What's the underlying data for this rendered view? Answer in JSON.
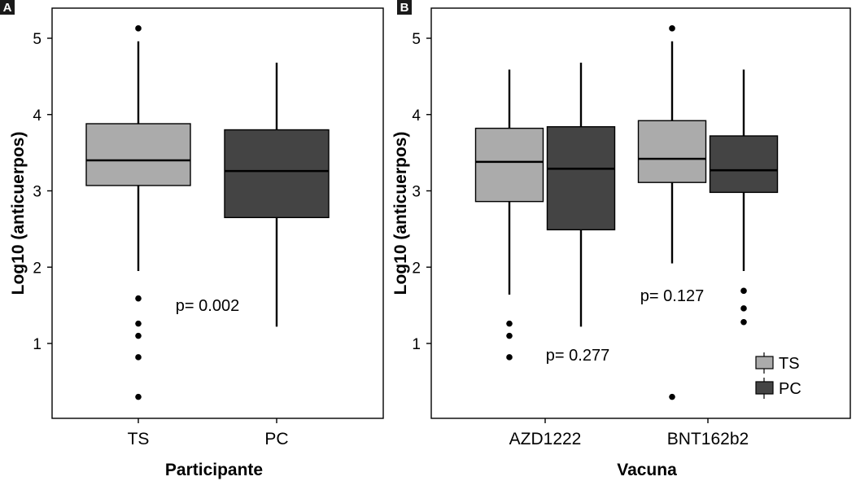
{
  "colors": {
    "ts": "#ababab",
    "pc": "#444444",
    "stroke": "#000000",
    "panel_label_bg": "#1a1a1a"
  },
  "chart_data": [
    {
      "type": "boxplot",
      "panel_label": "A",
      "xlabel": "Participante",
      "ylabel": "Log10 (anticuerpos)",
      "ylim": [
        0.1,
        5.4
      ],
      "yticks": [
        1,
        2,
        3,
        4,
        5
      ],
      "categories": [
        "TS",
        "PC"
      ],
      "boxes": [
        {
          "category": "TS",
          "group": "TS",
          "min": 1.95,
          "q1": 3.07,
          "median": 3.4,
          "q3": 3.88,
          "max": 4.96,
          "outliers": [
            5.13,
            1.59,
            1.26,
            1.1,
            0.82,
            0.3
          ]
        },
        {
          "category": "PC",
          "group": "PC",
          "min": 1.22,
          "q1": 2.65,
          "median": 3.26,
          "q3": 3.8,
          "max": 4.68,
          "outliers": []
        }
      ],
      "annotations": [
        {
          "text": "p= 0.002",
          "x": 1.5,
          "y": 1.5
        }
      ]
    },
    {
      "type": "boxplot",
      "panel_label": "B",
      "xlabel": "Vacuna",
      "ylabel": "Log10 (anticuerpos)",
      "ylim": [
        0.1,
        5.4
      ],
      "yticks": [
        1,
        2,
        3,
        4,
        5
      ],
      "categories": [
        "AZD1222",
        "BNT162b2"
      ],
      "legend": [
        {
          "label": "TS",
          "group": "TS"
        },
        {
          "label": "PC",
          "group": "PC"
        }
      ],
      "legend_position": "bottom-right",
      "boxes": [
        {
          "category": "AZD1222",
          "group": "TS",
          "min": 1.64,
          "q1": 2.86,
          "median": 3.38,
          "q3": 3.82,
          "max": 4.59,
          "outliers": [
            1.26,
            1.1,
            0.82
          ]
        },
        {
          "category": "AZD1222",
          "group": "PC",
          "min": 1.22,
          "q1": 2.49,
          "median": 3.29,
          "q3": 3.84,
          "max": 4.68,
          "outliers": []
        },
        {
          "category": "BNT162b2",
          "group": "TS",
          "min": 2.05,
          "q1": 3.11,
          "median": 3.42,
          "q3": 3.92,
          "max": 4.96,
          "outliers": [
            5.13,
            0.3
          ]
        },
        {
          "category": "BNT162b2",
          "group": "PC",
          "min": 1.95,
          "q1": 2.98,
          "median": 3.27,
          "q3": 3.72,
          "max": 4.59,
          "outliers": [
            1.69,
            1.46,
            1.28
          ]
        }
      ],
      "annotations": [
        {
          "text": "p= 0.277",
          "x": 1.2,
          "y": 0.85
        },
        {
          "text": "p= 0.127",
          "x": 1.78,
          "y": 1.63
        }
      ]
    }
  ]
}
